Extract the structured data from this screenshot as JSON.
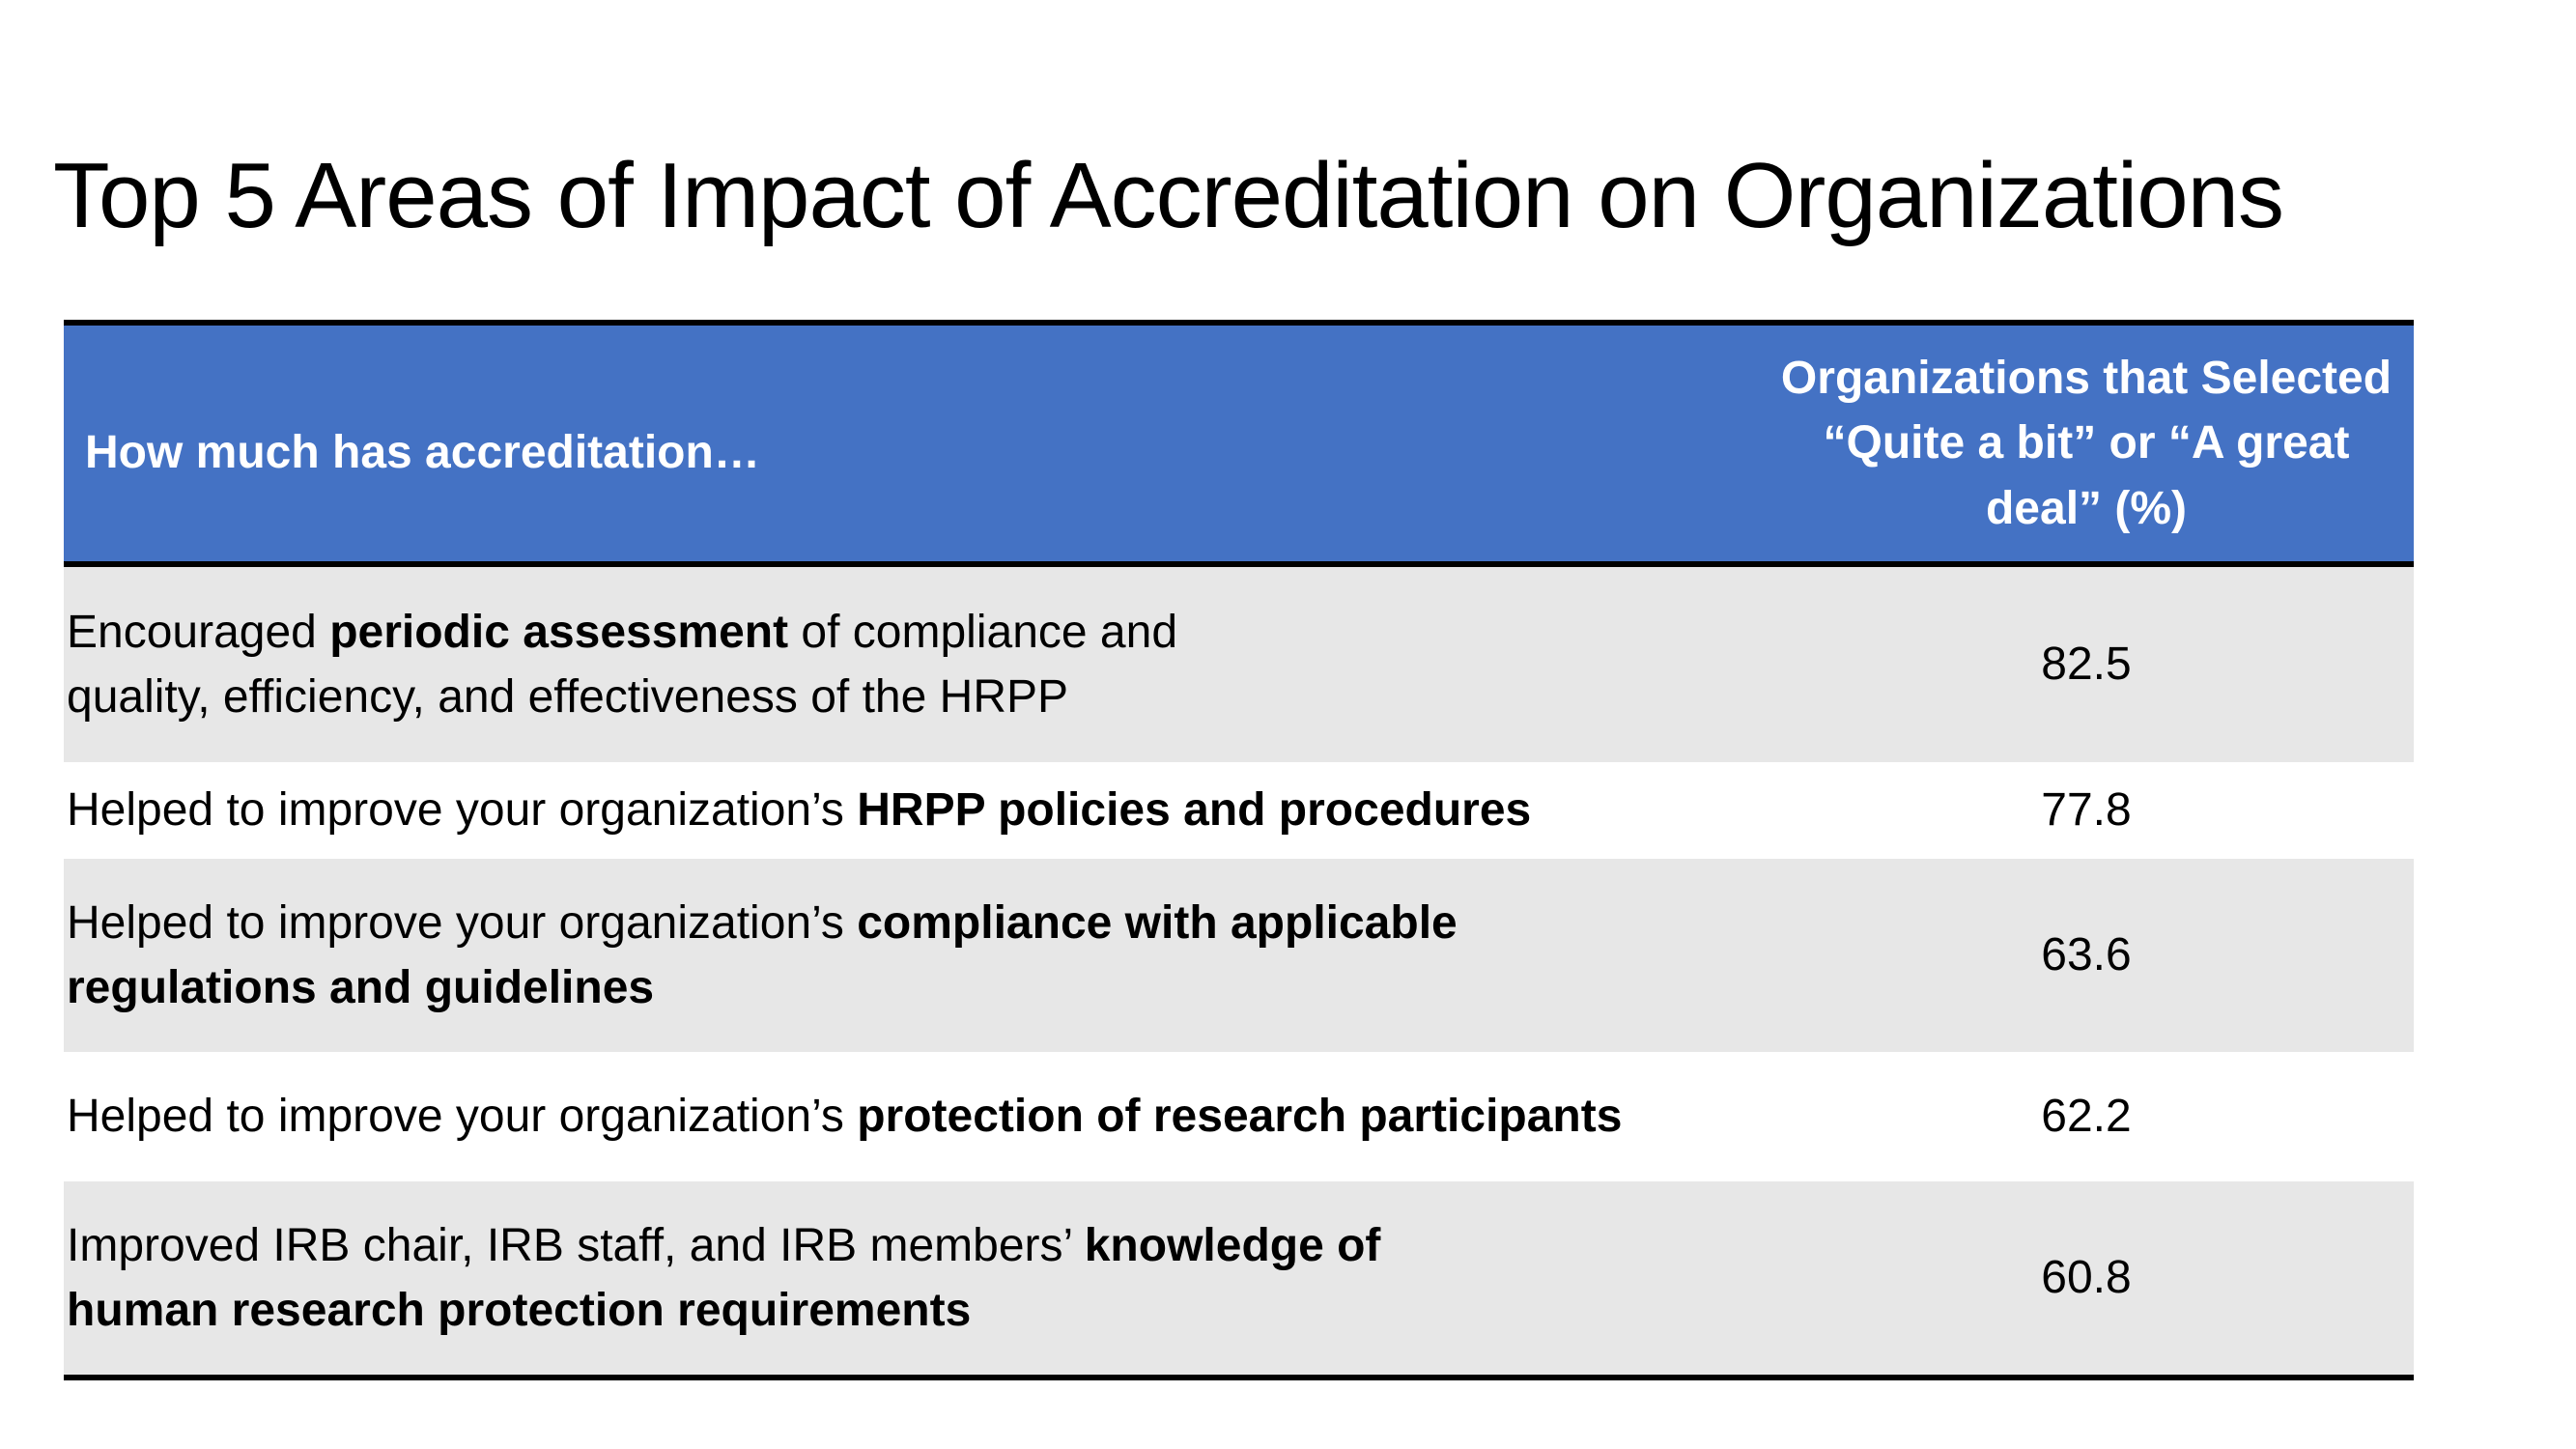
{
  "slide": {
    "title": "Top 5 Areas of Impact of Accreditation on Organizations"
  },
  "table": {
    "header": {
      "question": "How much has accreditation…",
      "value": "Organizations that Selected “Quite a bit” or “A great deal” (%)"
    },
    "rows": [
      {
        "before": "Encouraged ",
        "bold": "periodic assessment",
        "after": " of compliance and quality, efficiency, and effectiveness of the HRPP",
        "value": "82.5"
      },
      {
        "before": "Helped to improve your organization’s ",
        "bold": "HRPP policies and procedures",
        "after": "",
        "value": "77.8"
      },
      {
        "before": "Helped to improve your organization’s ",
        "bold": "compliance with applicable regulations and guidelines",
        "after": "",
        "value": "63.6"
      },
      {
        "before": "Helped to improve your organization’s ",
        "bold": "protection of research participants",
        "after": "",
        "value": "62.2"
      },
      {
        "before": "Improved IRB chair, IRB staff, and IRB members’ ",
        "bold": "knowledge of human research protection requirements",
        "after": "",
        "value": "60.8"
      }
    ]
  },
  "colors": {
    "header_background": "#4472C4",
    "header_text": "#FFFFFF",
    "shaded_row": "#E7E7E7",
    "rule": "#000000"
  }
}
